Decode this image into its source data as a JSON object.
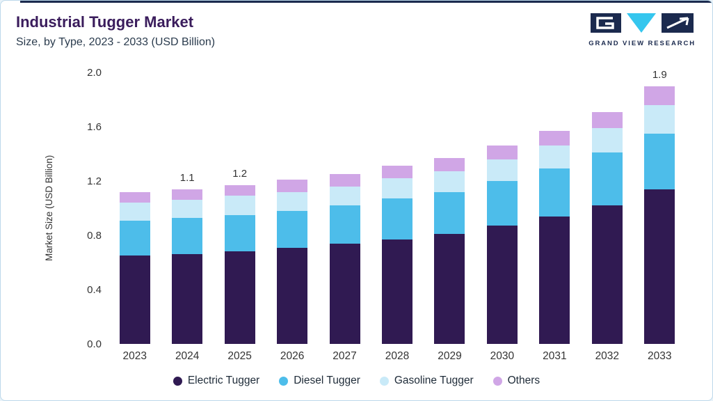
{
  "header": {
    "title": "Industrial Tugger Market",
    "subtitle": "Size, by Type, 2023 - 2033 (USD Billion)",
    "logo_text": "GRAND VIEW RESEARCH"
  },
  "colors": {
    "accent_navy": "#1b2a4e",
    "title_purple": "#3a1c5c",
    "logo_cyan": "#35c6ee",
    "card_border": "#bcd8ea"
  },
  "chart_data": {
    "type": "bar",
    "stacked": true,
    "title": "Industrial Tugger Market",
    "subtitle": "Size, by Type, 2023 - 2033 (USD Billion)",
    "xlabel": "",
    "ylabel": "Market Size (USD Billion)",
    "ylim": [
      0,
      2.0
    ],
    "ytick_labels": [
      "0.0",
      "0.4",
      "0.8",
      "1.2",
      "1.6",
      "2.0"
    ],
    "grid": false,
    "legend_position": "bottom",
    "categories": [
      "2023",
      "2024",
      "2025",
      "2026",
      "2027",
      "2028",
      "2029",
      "2030",
      "2031",
      "2032",
      "2033"
    ],
    "series": [
      {
        "name": "Electric Tugger",
        "color": "#301a52",
        "values": [
          0.65,
          0.66,
          0.68,
          0.71,
          0.74,
          0.77,
          0.81,
          0.87,
          0.94,
          1.02,
          1.14
        ]
      },
      {
        "name": "Diesel Tugger",
        "color": "#4dbdea",
        "values": [
          0.26,
          0.27,
          0.27,
          0.27,
          0.28,
          0.3,
          0.31,
          0.33,
          0.35,
          0.39,
          0.41
        ]
      },
      {
        "name": "Gasoline Tugger",
        "color": "#c9eaf8",
        "values": [
          0.13,
          0.13,
          0.14,
          0.14,
          0.14,
          0.15,
          0.15,
          0.16,
          0.17,
          0.18,
          0.21
        ]
      },
      {
        "name": "Others",
        "color": "#d0a6e6",
        "values": [
          0.08,
          0.08,
          0.08,
          0.09,
          0.09,
          0.09,
          0.1,
          0.1,
          0.11,
          0.12,
          0.14
        ]
      }
    ],
    "bar_labels": {
      "2024": "1.1",
      "2025": "1.2",
      "2033": "1.9"
    }
  }
}
